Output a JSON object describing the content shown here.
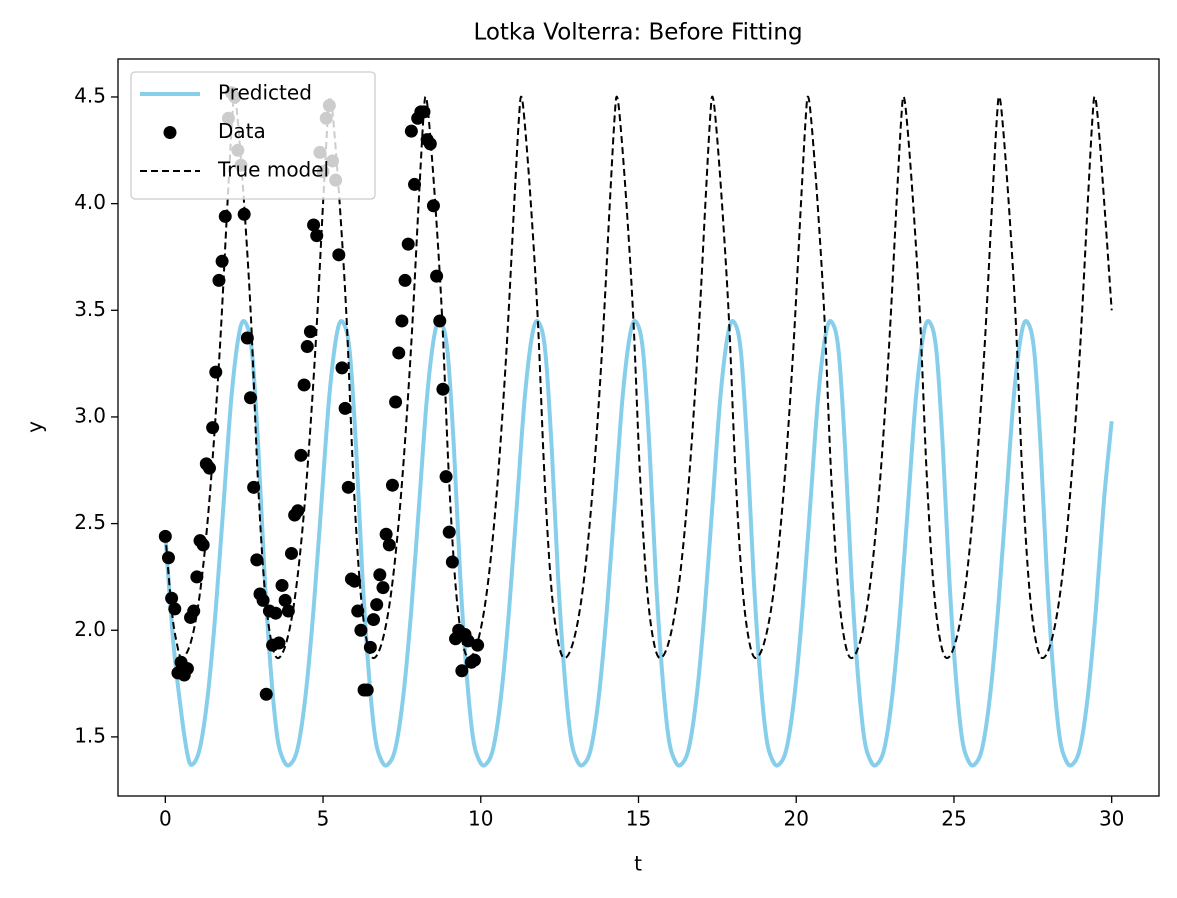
{
  "chart_data": {
    "type": "line",
    "title": "Lotka Volterra: Before Fitting",
    "xlabel": "t",
    "ylabel": "y",
    "xlim": [
      -1.5,
      31.5
    ],
    "ylim": [
      1.223,
      4.678
    ],
    "xticks": [
      0,
      5,
      10,
      15,
      20,
      25,
      30
    ],
    "yticks": [
      1.5,
      {
        "value": 2,
        "label": "2.0"
      },
      2.5,
      {
        "value": 3,
        "label": "3.0"
      },
      3.5,
      {
        "value": 4,
        "label": "4.0"
      },
      4.5
    ],
    "grid": false,
    "legend": "upper left",
    "series": [
      {
        "name": "Predicted",
        "color": "#87ceeb",
        "style": "solid",
        "x": [
          0,
          0.25,
          0.5,
          0.7,
          0.85,
          1.1,
          1.35,
          1.6,
          1.85,
          2.1,
          2.35,
          2.55,
          2.75,
          2.95,
          3.15,
          3.35,
          3.55,
          3.75,
          3.95,
          4.2,
          4.45,
          4.7,
          4.95,
          5.2,
          5.45,
          5.65,
          5.85,
          6.05,
          6.25,
          6.45,
          6.65,
          6.85,
          7.05,
          7.3,
          7.55,
          7.8,
          8.05,
          8.3,
          8.55,
          8.75,
          8.95,
          9.15,
          9.35,
          9.55,
          9.75,
          9.95,
          10.15,
          10.4,
          10.65,
          10.9,
          11.15,
          11.4,
          11.65,
          11.85,
          12.05,
          12.25,
          12.45,
          12.65,
          12.85,
          13.05,
          13.25,
          13.5,
          13.75,
          14.0,
          14.25,
          14.5,
          14.75,
          14.95,
          15.15,
          15.35,
          15.55,
          15.75,
          15.95,
          16.15,
          16.35,
          16.6,
          16.85,
          17.1,
          17.35,
          17.6,
          17.85,
          18.05,
          18.25,
          18.45,
          18.65,
          18.85,
          19.05,
          19.25,
          19.45,
          19.7,
          19.95,
          20.2,
          20.45,
          20.7,
          20.95,
          21.15,
          21.35,
          21.55,
          21.75,
          21.95,
          22.15,
          22.35,
          22.55,
          22.8,
          23.05,
          23.3,
          23.55,
          23.8,
          24.05,
          24.25,
          24.45,
          24.65,
          24.85,
          25.05,
          25.25,
          25.45,
          25.65,
          25.9,
          26.15,
          26.4,
          26.65,
          26.9,
          27.15,
          27.35,
          27.55,
          27.75,
          27.95,
          28.15,
          28.35,
          28.55,
          28.75,
          29.0,
          29.25,
          29.5,
          29.75,
          30.0
        ],
        "values": [
          2.45,
          1.95,
          1.62,
          1.42,
          1.37,
          1.45,
          1.7,
          2.1,
          2.6,
          3.1,
          3.4,
          3.44,
          3.3,
          2.85,
          2.25,
          1.8,
          1.5,
          1.39,
          1.37,
          1.45,
          1.7,
          2.1,
          2.6,
          3.1,
          3.4,
          3.44,
          3.3,
          2.85,
          2.25,
          1.8,
          1.5,
          1.39,
          1.37,
          1.45,
          1.7,
          2.1,
          2.6,
          3.1,
          3.4,
          3.44,
          3.3,
          2.85,
          2.25,
          1.8,
          1.5,
          1.39,
          1.37,
          1.45,
          1.7,
          2.1,
          2.6,
          3.1,
          3.4,
          3.44,
          3.3,
          2.85,
          2.25,
          1.8,
          1.5,
          1.39,
          1.37,
          1.45,
          1.7,
          2.1,
          2.6,
          3.1,
          3.4,
          3.44,
          3.3,
          2.85,
          2.25,
          1.8,
          1.5,
          1.39,
          1.37,
          1.45,
          1.7,
          2.1,
          2.6,
          3.1,
          3.4,
          3.44,
          3.3,
          2.85,
          2.25,
          1.8,
          1.5,
          1.39,
          1.37,
          1.45,
          1.7,
          2.1,
          2.6,
          3.1,
          3.4,
          3.44,
          3.3,
          2.85,
          2.25,
          1.8,
          1.5,
          1.39,
          1.37,
          1.45,
          1.7,
          2.1,
          2.6,
          3.1,
          3.4,
          3.44,
          3.3,
          2.85,
          2.25,
          1.8,
          1.5,
          1.39,
          1.37,
          1.45,
          1.7,
          2.1,
          2.6,
          3.1,
          3.4,
          3.44,
          3.3,
          2.85,
          2.25,
          1.8,
          1.5,
          1.39,
          1.37,
          1.45,
          1.7,
          2.1,
          2.6,
          2.98
        ]
      },
      {
        "name": "Data",
        "color": "#000000",
        "style": "scatter",
        "x": [
          0,
          0.1,
          0.2,
          0.3,
          0.4,
          0.5,
          0.6,
          0.7,
          0.8,
          0.9,
          1,
          1.1,
          1.2,
          1.3,
          1.4,
          1.5,
          1.6,
          1.7,
          1.8,
          1.9,
          2,
          2.1,
          2.2,
          2.3,
          2.4,
          2.5,
          2.6,
          2.7,
          2.8,
          2.9,
          3,
          3.1,
          3.2,
          3.3,
          3.4,
          3.5,
          3.6,
          3.7,
          3.8,
          3.9,
          4,
          4.1,
          4.2,
          4.3,
          4.4,
          4.5,
          4.6,
          4.7,
          4.8,
          4.9,
          5,
          5.1,
          5.2,
          5.3,
          5.4,
          5.5,
          5.6,
          5.7,
          5.8,
          5.9,
          6,
          6.1,
          6.2,
          6.3,
          6.4,
          6.5,
          6.6,
          6.7,
          6.8,
          6.9,
          7,
          7.1,
          7.2,
          7.3,
          7.4,
          7.5,
          7.6,
          7.7,
          7.8,
          7.9,
          8,
          8.1,
          8.2,
          8.3,
          8.4,
          8.5,
          8.6,
          8.7,
          8.8,
          8.9,
          9,
          9.1,
          9.2,
          9.3,
          9.4,
          9.5,
          9.6,
          9.7,
          9.8,
          9.9
        ],
        "values": [
          2.44,
          2.34,
          2.15,
          2.1,
          1.8,
          1.85,
          1.79,
          1.82,
          2.06,
          2.09,
          2.25,
          2.42,
          2.4,
          2.78,
          2.76,
          2.95,
          3.21,
          3.64,
          3.73,
          3.94,
          4.4,
          4.52,
          4.5,
          4.25,
          4.18,
          3.95,
          3.37,
          3.09,
          2.67,
          2.33,
          2.17,
          2.14,
          1.7,
          2.09,
          1.93,
          2.08,
          1.94,
          2.21,
          2.14,
          2.09,
          2.36,
          2.54,
          2.56,
          2.82,
          3.15,
          3.33,
          3.4,
          3.9,
          3.85,
          4.24,
          4.15,
          4.4,
          4.46,
          4.2,
          4.11,
          3.76,
          3.23,
          3.04,
          2.67,
          2.24,
          2.23,
          2.09,
          2.0,
          1.72,
          1.72,
          1.92,
          2.05,
          2.12,
          2.26,
          2.2,
          2.45,
          2.4,
          2.68,
          3.07,
          3.3,
          3.45,
          3.64,
          3.81,
          4.34,
          4.09,
          4.4,
          4.43,
          4.43,
          4.3,
          4.28,
          3.99,
          3.66,
          3.45,
          3.13,
          2.72,
          2.46,
          2.32,
          1.96,
          2.0,
          1.81,
          1.98,
          1.95,
          1.85,
          1.86,
          1.93
        ]
      },
      {
        "name": "True model",
        "color": "#000000",
        "style": "dashed",
        "x": [
          0,
          0.2,
          0.35,
          0.52,
          0.82,
          1.12,
          1.42,
          1.72,
          1.97,
          2.12,
          2.2,
          2.32,
          2.52,
          2.72,
          2.92,
          3.12,
          3.32,
          3.55,
          3.85,
          4.15,
          4.45,
          4.75,
          5.0,
          5.15,
          5.23,
          5.35,
          5.55,
          5.75,
          5.95,
          6.15,
          6.35,
          6.58,
          6.88,
          7.18,
          7.48,
          7.78,
          8.03,
          8.18,
          8.26,
          8.38,
          8.58,
          8.78,
          8.98,
          9.18,
          9.38,
          9.61,
          9.91,
          10.21,
          10.51,
          10.81,
          11.06,
          11.21,
          11.29,
          11.41,
          11.61,
          11.81,
          12.01,
          12.21,
          12.41,
          12.64,
          12.94,
          13.24,
          13.54,
          13.84,
          14.09,
          14.24,
          14.32,
          14.44,
          14.64,
          14.84,
          15.04,
          15.24,
          15.44,
          15.67,
          15.97,
          16.27,
          16.57,
          16.87,
          17.12,
          17.27,
          17.35,
          17.47,
          17.67,
          17.87,
          18.07,
          18.27,
          18.47,
          18.7,
          19.0,
          19.3,
          19.6,
          19.9,
          20.15,
          20.3,
          20.38,
          20.5,
          20.7,
          20.9,
          21.1,
          21.3,
          21.5,
          21.73,
          22.03,
          22.33,
          22.63,
          22.93,
          23.18,
          23.33,
          23.41,
          23.53,
          23.73,
          23.93,
          24.13,
          24.33,
          24.53,
          24.76,
          25.06,
          25.36,
          25.66,
          25.96,
          26.21,
          26.36,
          26.44,
          26.56,
          26.76,
          26.96,
          27.16,
          27.36,
          27.56,
          27.79,
          28.09,
          28.39,
          28.69,
          28.99,
          29.24,
          29.39,
          29.47,
          29.59,
          29.79,
          30.0
        ],
        "values": [
          2.45,
          2.1,
          1.95,
          1.87,
          1.95,
          2.2,
          2.65,
          3.3,
          4.0,
          4.4,
          4.5,
          4.35,
          3.95,
          3.45,
          2.75,
          2.25,
          1.98,
          1.87,
          1.95,
          2.2,
          2.65,
          3.3,
          4.0,
          4.4,
          4.5,
          4.35,
          3.95,
          3.45,
          2.75,
          2.25,
          1.98,
          1.87,
          1.95,
          2.2,
          2.65,
          3.3,
          4.0,
          4.4,
          4.5,
          4.35,
          3.95,
          3.45,
          2.75,
          2.25,
          1.98,
          1.87,
          1.95,
          2.2,
          2.65,
          3.3,
          4.0,
          4.4,
          4.5,
          4.35,
          3.95,
          3.45,
          2.75,
          2.25,
          1.98,
          1.87,
          1.95,
          2.2,
          2.65,
          3.3,
          4.0,
          4.4,
          4.5,
          4.35,
          3.95,
          3.45,
          2.75,
          2.25,
          1.98,
          1.87,
          1.95,
          2.2,
          2.65,
          3.3,
          4.0,
          4.4,
          4.5,
          4.35,
          3.95,
          3.45,
          2.75,
          2.25,
          1.98,
          1.87,
          1.95,
          2.2,
          2.65,
          3.3,
          4.0,
          4.4,
          4.5,
          4.35,
          3.95,
          3.45,
          2.75,
          2.25,
          1.98,
          1.87,
          1.95,
          2.2,
          2.65,
          3.3,
          4.0,
          4.4,
          4.5,
          4.35,
          3.95,
          3.45,
          2.75,
          2.25,
          1.98,
          1.87,
          1.95,
          2.2,
          2.65,
          3.3,
          4.0,
          4.4,
          4.5,
          4.35,
          3.95,
          3.45,
          2.75,
          2.25,
          1.98,
          1.87,
          1.95,
          2.2,
          2.65,
          3.3,
          4.0,
          4.4,
          4.5,
          4.35,
          3.95,
          3.5
        ]
      }
    ]
  }
}
